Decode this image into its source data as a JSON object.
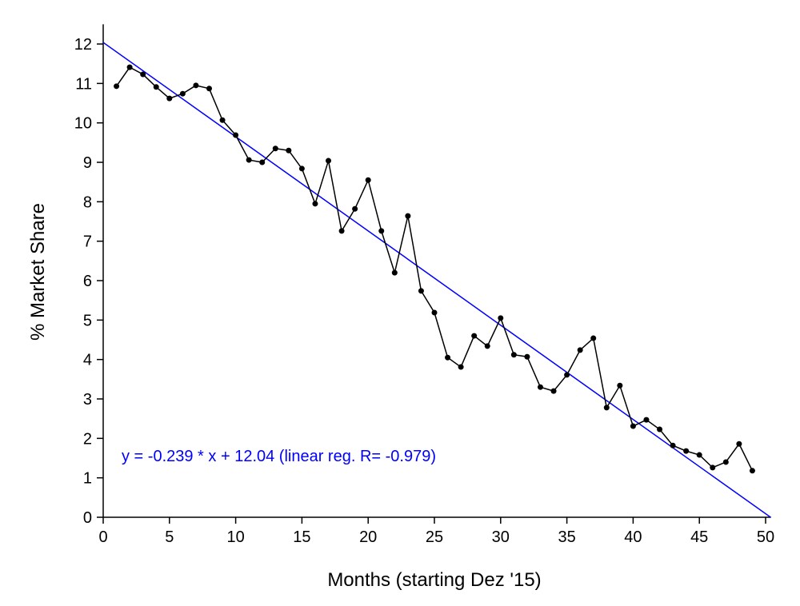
{
  "chart_data": {
    "type": "line",
    "xlabel": "Months (starting Dez '15)",
    "ylabel": "% Market Share",
    "annotation": "y = -0.239 * x + 12.04 (linear reg. R= -0.979)",
    "x": [
      1,
      2,
      3,
      4,
      5,
      6,
      7,
      8,
      9,
      10,
      11,
      12,
      13,
      14,
      15,
      16,
      17,
      18,
      19,
      20,
      21,
      22,
      23,
      24,
      25,
      26,
      27,
      28,
      29,
      30,
      31,
      32,
      33,
      34,
      35,
      36,
      37,
      38,
      39,
      40,
      41,
      42,
      43,
      44,
      45,
      46,
      47,
      48,
      49
    ],
    "series": [
      {
        "color": "#000000",
        "values": [
          10.93,
          11.41,
          11.23,
          10.91,
          10.62,
          10.74,
          10.95,
          10.87,
          10.07,
          9.69,
          9.06,
          9.0,
          9.35,
          9.3,
          8.84,
          7.95,
          9.04,
          7.26,
          7.82,
          8.55,
          7.26,
          6.2,
          7.64,
          5.74,
          5.19,
          4.05,
          3.81,
          4.6,
          4.34,
          5.05,
          4.12,
          4.07,
          3.3,
          3.2,
          3.61,
          4.24,
          4.54,
          2.78,
          3.34,
          2.31,
          2.47,
          2.23,
          1.82,
          1.68,
          1.58,
          1.26,
          1.4,
          1.86,
          1.18
        ]
      }
    ],
    "trendline": {
      "slope": -0.239,
      "intercept": 12.04,
      "color": "#0000ff"
    },
    "xlim": [
      0,
      50.4
    ],
    "ylim": [
      0,
      12.5
    ],
    "xticks": [
      0,
      5,
      10,
      15,
      20,
      25,
      30,
      35,
      40,
      45,
      50
    ],
    "yticks": [
      0,
      1,
      2,
      3,
      4,
      5,
      6,
      7,
      8,
      9,
      10,
      11,
      12
    ]
  }
}
